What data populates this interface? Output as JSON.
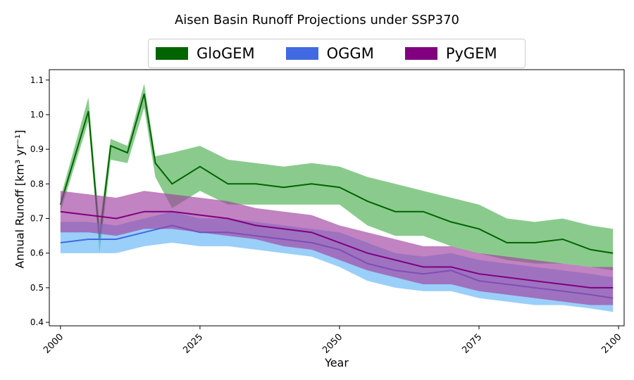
{
  "chart_data": {
    "type": "area",
    "title": "Aisen Basin Runoff Projections under SSP370",
    "xlabel": "Year",
    "ylabel": "Annual Runoff [km³ yr⁻¹]",
    "xlim": [
      1998,
      2101
    ],
    "ylim": [
      0.39,
      1.13
    ],
    "xticks": [
      "2000",
      "2025",
      "2050",
      "2075",
      "2100"
    ],
    "yticks": [
      "0.4",
      "0.5",
      "0.6",
      "0.7",
      "0.8",
      "0.9",
      "1.0",
      "1.1"
    ],
    "legend_position": "top-center",
    "grid": false,
    "series": [
      {
        "name": "GloGEM",
        "color": "#006400",
        "fill": "#4caf50",
        "x": [
          2000,
          2005,
          2007,
          2009,
          2012,
          2015,
          2017,
          2020,
          2025,
          2030,
          2035,
          2040,
          2045,
          2050,
          2055,
          2060,
          2065,
          2070,
          2075,
          2080,
          2085,
          2090,
          2095,
          2099
        ],
        "mean": [
          0.74,
          1.01,
          0.64,
          0.91,
          0.89,
          1.06,
          0.86,
          0.8,
          0.85,
          0.8,
          0.8,
          0.79,
          0.8,
          0.79,
          0.75,
          0.72,
          0.72,
          0.69,
          0.67,
          0.63,
          0.63,
          0.64,
          0.61,
          0.6
        ],
        "lower": [
          0.72,
          0.98,
          0.6,
          0.87,
          0.86,
          1.02,
          0.82,
          0.73,
          0.78,
          0.74,
          0.74,
          0.74,
          0.74,
          0.74,
          0.68,
          0.65,
          0.65,
          0.62,
          0.6,
          0.58,
          0.57,
          0.57,
          0.56,
          0.55
        ],
        "upper": [
          0.76,
          1.05,
          0.68,
          0.93,
          0.91,
          1.09,
          0.88,
          0.89,
          0.91,
          0.87,
          0.86,
          0.85,
          0.86,
          0.85,
          0.82,
          0.8,
          0.78,
          0.76,
          0.74,
          0.7,
          0.69,
          0.7,
          0.68,
          0.67
        ]
      },
      {
        "name": "OGGM",
        "color": "#4169e1",
        "fill": "#64b5f6",
        "x": [
          2000,
          2005,
          2010,
          2015,
          2020,
          2025,
          2030,
          2035,
          2040,
          2045,
          2050,
          2055,
          2060,
          2065,
          2070,
          2075,
          2080,
          2085,
          2090,
          2095,
          2099
        ],
        "mean": [
          0.63,
          0.64,
          0.64,
          0.66,
          0.68,
          0.66,
          0.66,
          0.65,
          0.64,
          0.63,
          0.61,
          0.57,
          0.55,
          0.54,
          0.55,
          0.52,
          0.51,
          0.5,
          0.49,
          0.48,
          0.47
        ],
        "lower": [
          0.6,
          0.6,
          0.6,
          0.62,
          0.63,
          0.62,
          0.62,
          0.61,
          0.6,
          0.59,
          0.56,
          0.52,
          0.5,
          0.49,
          0.49,
          0.47,
          0.46,
          0.45,
          0.45,
          0.44,
          0.43
        ],
        "upper": [
          0.69,
          0.69,
          0.68,
          0.7,
          0.72,
          0.7,
          0.7,
          0.69,
          0.68,
          0.67,
          0.66,
          0.63,
          0.6,
          0.59,
          0.6,
          0.58,
          0.57,
          0.56,
          0.55,
          0.54,
          0.53
        ]
      },
      {
        "name": "PyGEM",
        "color": "#800080",
        "fill": "#a0409f",
        "x": [
          2000,
          2005,
          2010,
          2015,
          2020,
          2025,
          2030,
          2035,
          2040,
          2045,
          2050,
          2055,
          2060,
          2065,
          2070,
          2075,
          2080,
          2085,
          2090,
          2095,
          2099
        ],
        "mean": [
          0.72,
          0.71,
          0.7,
          0.72,
          0.72,
          0.71,
          0.7,
          0.68,
          0.67,
          0.66,
          0.63,
          0.6,
          0.58,
          0.56,
          0.56,
          0.54,
          0.53,
          0.52,
          0.51,
          0.5,
          0.5
        ],
        "lower": [
          0.66,
          0.66,
          0.65,
          0.67,
          0.67,
          0.66,
          0.65,
          0.64,
          0.62,
          0.61,
          0.58,
          0.55,
          0.53,
          0.51,
          0.51,
          0.49,
          0.48,
          0.47,
          0.46,
          0.45,
          0.45
        ],
        "upper": [
          0.78,
          0.77,
          0.76,
          0.78,
          0.77,
          0.76,
          0.75,
          0.73,
          0.72,
          0.71,
          0.68,
          0.66,
          0.64,
          0.62,
          0.62,
          0.6,
          0.59,
          0.58,
          0.57,
          0.56,
          0.56
        ]
      }
    ]
  }
}
